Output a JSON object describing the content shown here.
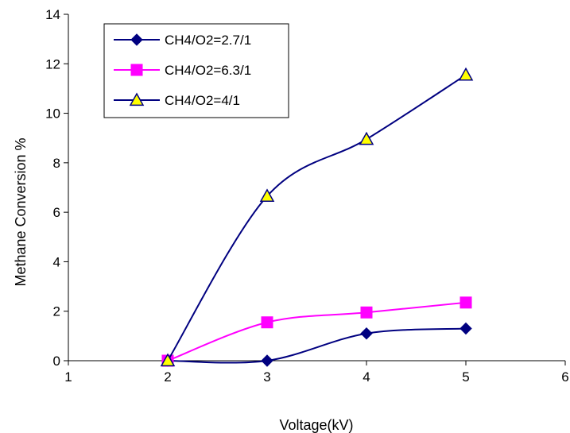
{
  "chart_data": {
    "type": "line",
    "title": "",
    "xlabel": "Voltage(kV)",
    "ylabel": "Methane Conversion %",
    "xlim": [
      1,
      6
    ],
    "ylim": [
      0,
      14
    ],
    "x_ticks": [
      "1",
      "2",
      "3",
      "4",
      "5",
      "6"
    ],
    "y_ticks": [
      "0",
      "2",
      "4",
      "6",
      "8",
      "10",
      "12",
      "14"
    ],
    "grid": false,
    "legend_position": "top-left",
    "series": [
      {
        "name": "CH4/O2=2.7/1",
        "marker": "diamond",
        "color": "#000080",
        "marker_fill": "#000080",
        "x": [
          2,
          3,
          4,
          5
        ],
        "y": [
          0,
          0,
          1.1,
          1.3
        ]
      },
      {
        "name": "CH4/O2=6.3/1",
        "marker": "square",
        "color": "#ff00ff",
        "marker_fill": "#ff00ff",
        "x": [
          2,
          3,
          4,
          5
        ],
        "y": [
          0,
          1.55,
          1.95,
          2.35
        ]
      },
      {
        "name": "CH4/O2=4/1",
        "marker": "triangle",
        "color": "#000080",
        "marker_fill": "#ffff00",
        "x": [
          2,
          3,
          4,
          5
        ],
        "y": [
          0,
          6.65,
          8.95,
          11.55
        ]
      }
    ]
  }
}
